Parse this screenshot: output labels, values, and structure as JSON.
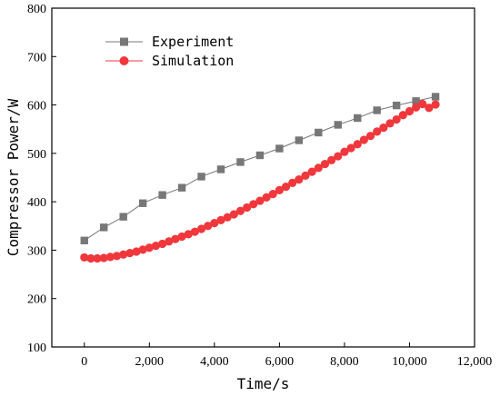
{
  "chart_data": {
    "type": "line",
    "xlabel": "Time/s",
    "ylabel": "Compressor Power/W",
    "xlim": [
      -1000,
      12000
    ],
    "ylim": [
      100,
      800
    ],
    "xticks": [
      0,
      2000,
      4000,
      6000,
      8000,
      10000,
      12000
    ],
    "xtick_labels": [
      "0",
      "2,000",
      "4,000",
      "6,000",
      "8,000",
      "10,000",
      "12,000"
    ],
    "yticks": [
      100,
      200,
      300,
      400,
      500,
      600,
      700,
      800
    ],
    "ytick_labels": [
      "100",
      "200",
      "300",
      "400",
      "500",
      "600",
      "700",
      "800"
    ],
    "grid": false,
    "legend_position": "top-left",
    "series": [
      {
        "name": "Experiment",
        "marker": "square",
        "color": "#777777",
        "points": [
          [
            0,
            320
          ],
          [
            600,
            347
          ],
          [
            1200,
            369
          ],
          [
            1800,
            397
          ],
          [
            2400,
            414
          ],
          [
            3000,
            429
          ],
          [
            3600,
            452
          ],
          [
            4200,
            467
          ],
          [
            4800,
            482
          ],
          [
            5400,
            496
          ],
          [
            6000,
            510
          ],
          [
            6600,
            527
          ],
          [
            7200,
            543
          ],
          [
            7800,
            559
          ],
          [
            8400,
            573
          ],
          [
            9000,
            589
          ],
          [
            9600,
            599
          ],
          [
            10200,
            608
          ],
          [
            10800,
            617
          ]
        ]
      },
      {
        "name": "Simulation",
        "marker": "circle",
        "color": "#f0373c",
        "points": [
          [
            0,
            285
          ],
          [
            200,
            283
          ],
          [
            400,
            283
          ],
          [
            600,
            284
          ],
          [
            800,
            286
          ],
          [
            1000,
            288
          ],
          [
            1200,
            291
          ],
          [
            1400,
            294
          ],
          [
            1600,
            297
          ],
          [
            1800,
            301
          ],
          [
            2000,
            305
          ],
          [
            2200,
            309
          ],
          [
            2400,
            313
          ],
          [
            2600,
            318
          ],
          [
            2800,
            323
          ],
          [
            3000,
            328
          ],
          [
            3200,
            333
          ],
          [
            3400,
            338
          ],
          [
            3600,
            344
          ],
          [
            3800,
            350
          ],
          [
            4000,
            356
          ],
          [
            4200,
            362
          ],
          [
            4400,
            368
          ],
          [
            4600,
            374
          ],
          [
            4800,
            381
          ],
          [
            5000,
            388
          ],
          [
            5200,
            395
          ],
          [
            5400,
            402
          ],
          [
            5600,
            409
          ],
          [
            5800,
            416
          ],
          [
            6000,
            424
          ],
          [
            6200,
            431
          ],
          [
            6400,
            439
          ],
          [
            6600,
            446
          ],
          [
            6800,
            454
          ],
          [
            7000,
            462
          ],
          [
            7200,
            470
          ],
          [
            7400,
            478
          ],
          [
            7600,
            486
          ],
          [
            7800,
            494
          ],
          [
            8000,
            503
          ],
          [
            8200,
            511
          ],
          [
            8400,
            519
          ],
          [
            8600,
            528
          ],
          [
            8800,
            536
          ],
          [
            9000,
            545
          ],
          [
            9200,
            553
          ],
          [
            9400,
            562
          ],
          [
            9600,
            570
          ],
          [
            9800,
            579
          ],
          [
            10000,
            587
          ],
          [
            10200,
            595
          ],
          [
            10400,
            602
          ],
          [
            10600,
            594
          ],
          [
            10800,
            601
          ]
        ]
      }
    ]
  }
}
